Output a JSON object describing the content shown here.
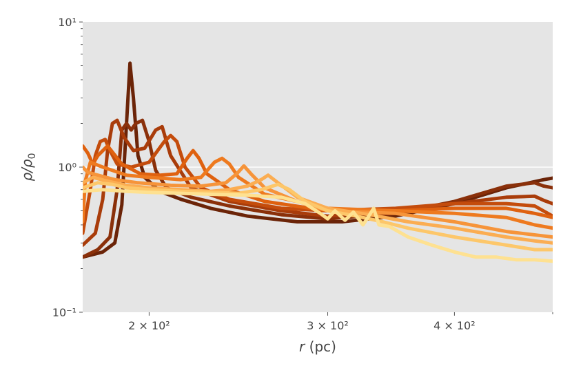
{
  "chart_data": {
    "type": "line",
    "title": "",
    "xlabel": "r (pc)",
    "ylabel": "ρ/ρ0",
    "xscale": "log",
    "yscale": "log",
    "xlim": [
      172,
      500
    ],
    "ylim": [
      0.1,
      10
    ],
    "grid": true,
    "legend": "none",
    "x_ticks": [
      {
        "value": 200,
        "label": "2 × 10²"
      },
      {
        "value": 300,
        "label": "3 × 10²"
      },
      {
        "value": 400,
        "label": "4 × 10²"
      }
    ],
    "y_ticks": [
      {
        "value": 0.1,
        "label": "10⁻¹"
      },
      {
        "value": 1,
        "label": "10⁰"
      },
      {
        "value": 10,
        "label": "10¹"
      }
    ],
    "series": [
      {
        "color": "#6b2408",
        "x": [
          172,
          180,
          185,
          188,
          190,
          191.5,
          193,
          195,
          198,
          205,
          215,
          230,
          250,
          280,
          310,
          350,
          400,
          450,
          490,
          500
        ],
        "y": [
          0.24,
          0.26,
          0.3,
          0.55,
          2.0,
          5.2,
          3.0,
          1.2,
          0.85,
          0.68,
          0.6,
          0.52,
          0.46,
          0.42,
          0.42,
          0.46,
          0.56,
          0.72,
          0.82,
          0.84
        ]
      },
      {
        "color": "#8a300a",
        "x": [
          172,
          178,
          183,
          186,
          188,
          190,
          192,
          194,
          197,
          200,
          203,
          208,
          220,
          240,
          270,
          300,
          350,
          400,
          450,
          480,
          490,
          500
        ],
        "y": [
          0.24,
          0.27,
          0.33,
          0.7,
          1.8,
          2.0,
          1.8,
          2.0,
          2.1,
          1.5,
          0.95,
          0.72,
          0.62,
          0.54,
          0.47,
          0.44,
          0.48,
          0.58,
          0.74,
          0.78,
          0.74,
          0.72
        ]
      },
      {
        "color": "#a93c0a",
        "x": [
          172,
          177,
          180,
          182,
          184,
          186,
          189,
          193,
          198,
          203,
          206,
          210,
          220,
          240,
          270,
          300,
          350,
          400,
          450,
          480,
          490,
          500
        ],
        "y": [
          0.29,
          0.35,
          0.6,
          1.3,
          2.0,
          2.1,
          1.6,
          1.3,
          1.35,
          1.8,
          1.9,
          1.2,
          0.72,
          0.58,
          0.5,
          0.46,
          0.5,
          0.56,
          0.62,
          0.63,
          0.59,
          0.56
        ]
      },
      {
        "color": "#c44c0c",
        "x": [
          172,
          175,
          177,
          179,
          181,
          183,
          186,
          192,
          200,
          207,
          210,
          213,
          217,
          225,
          240,
          270,
          300,
          350,
          400,
          450,
          480,
          500
        ],
        "y": [
          0.35,
          0.7,
          1.2,
          1.5,
          1.55,
          1.3,
          1.05,
          1.0,
          1.08,
          1.5,
          1.65,
          1.5,
          1.0,
          0.72,
          0.6,
          0.52,
          0.5,
          0.52,
          0.56,
          0.56,
          0.54,
          0.46
        ]
      },
      {
        "color": "#df610f",
        "x": [
          172,
          174,
          176,
          178,
          182,
          188,
          196,
          205,
          213,
          218,
          221,
          224,
          228,
          240,
          260,
          300,
          350,
          400,
          450,
          480,
          500
        ],
        "y": [
          1.4,
          1.25,
          1.05,
          1.2,
          1.4,
          1.05,
          0.9,
          0.88,
          0.9,
          1.15,
          1.3,
          1.15,
          0.9,
          0.7,
          0.58,
          0.5,
          0.5,
          0.52,
          0.52,
          0.48,
          0.45
        ]
      },
      {
        "color": "#ee7a1f",
        "x": [
          172,
          173,
          175,
          180,
          190,
          200,
          215,
          225,
          232,
          236,
          240,
          245,
          260,
          300,
          350,
          400,
          450,
          480,
          500
        ],
        "y": [
          0.42,
          0.8,
          1.08,
          1.0,
          0.88,
          0.85,
          0.82,
          0.85,
          1.08,
          1.15,
          1.05,
          0.85,
          0.65,
          0.52,
          0.5,
          0.48,
          0.45,
          0.4,
          0.38
        ]
      },
      {
        "color": "#f6943a",
        "x": [
          172,
          174,
          178,
          185,
          195,
          210,
          225,
          238,
          244,
          248,
          252,
          260,
          280,
          300,
          350,
          400,
          450,
          500
        ],
        "y": [
          1.0,
          0.92,
          0.88,
          0.82,
          0.78,
          0.75,
          0.74,
          0.78,
          0.9,
          1.02,
          0.9,
          0.72,
          0.58,
          0.5,
          0.48,
          0.42,
          0.36,
          0.33
        ]
      },
      {
        "color": "#fbad52",
        "x": [
          172,
          176,
          182,
          190,
          200,
          215,
          230,
          240,
          250,
          258,
          262,
          268,
          280,
          300,
          330,
          360,
          400,
          450,
          480,
          500
        ],
        "y": [
          0.78,
          0.85,
          0.8,
          0.75,
          0.72,
          0.7,
          0.68,
          0.7,
          0.74,
          0.82,
          0.88,
          0.78,
          0.62,
          0.52,
          0.47,
          0.42,
          0.38,
          0.33,
          0.31,
          0.3
        ]
      },
      {
        "color": "#fdc76a",
        "x": [
          172,
          178,
          184,
          190,
          200,
          215,
          230,
          245,
          258,
          268,
          275,
          285,
          300,
          320,
          340,
          360,
          400,
          450,
          480,
          500
        ],
        "y": [
          0.72,
          0.78,
          0.76,
          0.72,
          0.7,
          0.68,
          0.67,
          0.66,
          0.7,
          0.76,
          0.7,
          0.58,
          0.5,
          0.46,
          0.42,
          0.38,
          0.33,
          0.29,
          0.27,
          0.27
        ]
      },
      {
        "color": "#fee191",
        "x": [
          172,
          180,
          190,
          200,
          215,
          230,
          250,
          270,
          285,
          295,
          300,
          305,
          312,
          318,
          325,
          330,
          333,
          337,
          345,
          360,
          380,
          400,
          420,
          440,
          460,
          480,
          500
        ],
        "y": [
          0.68,
          0.7,
          0.68,
          0.67,
          0.66,
          0.65,
          0.64,
          0.62,
          0.56,
          0.48,
          0.44,
          0.5,
          0.43,
          0.49,
          0.4,
          0.47,
          0.52,
          0.4,
          0.39,
          0.33,
          0.29,
          0.26,
          0.24,
          0.24,
          0.23,
          0.23,
          0.225
        ]
      }
    ]
  }
}
